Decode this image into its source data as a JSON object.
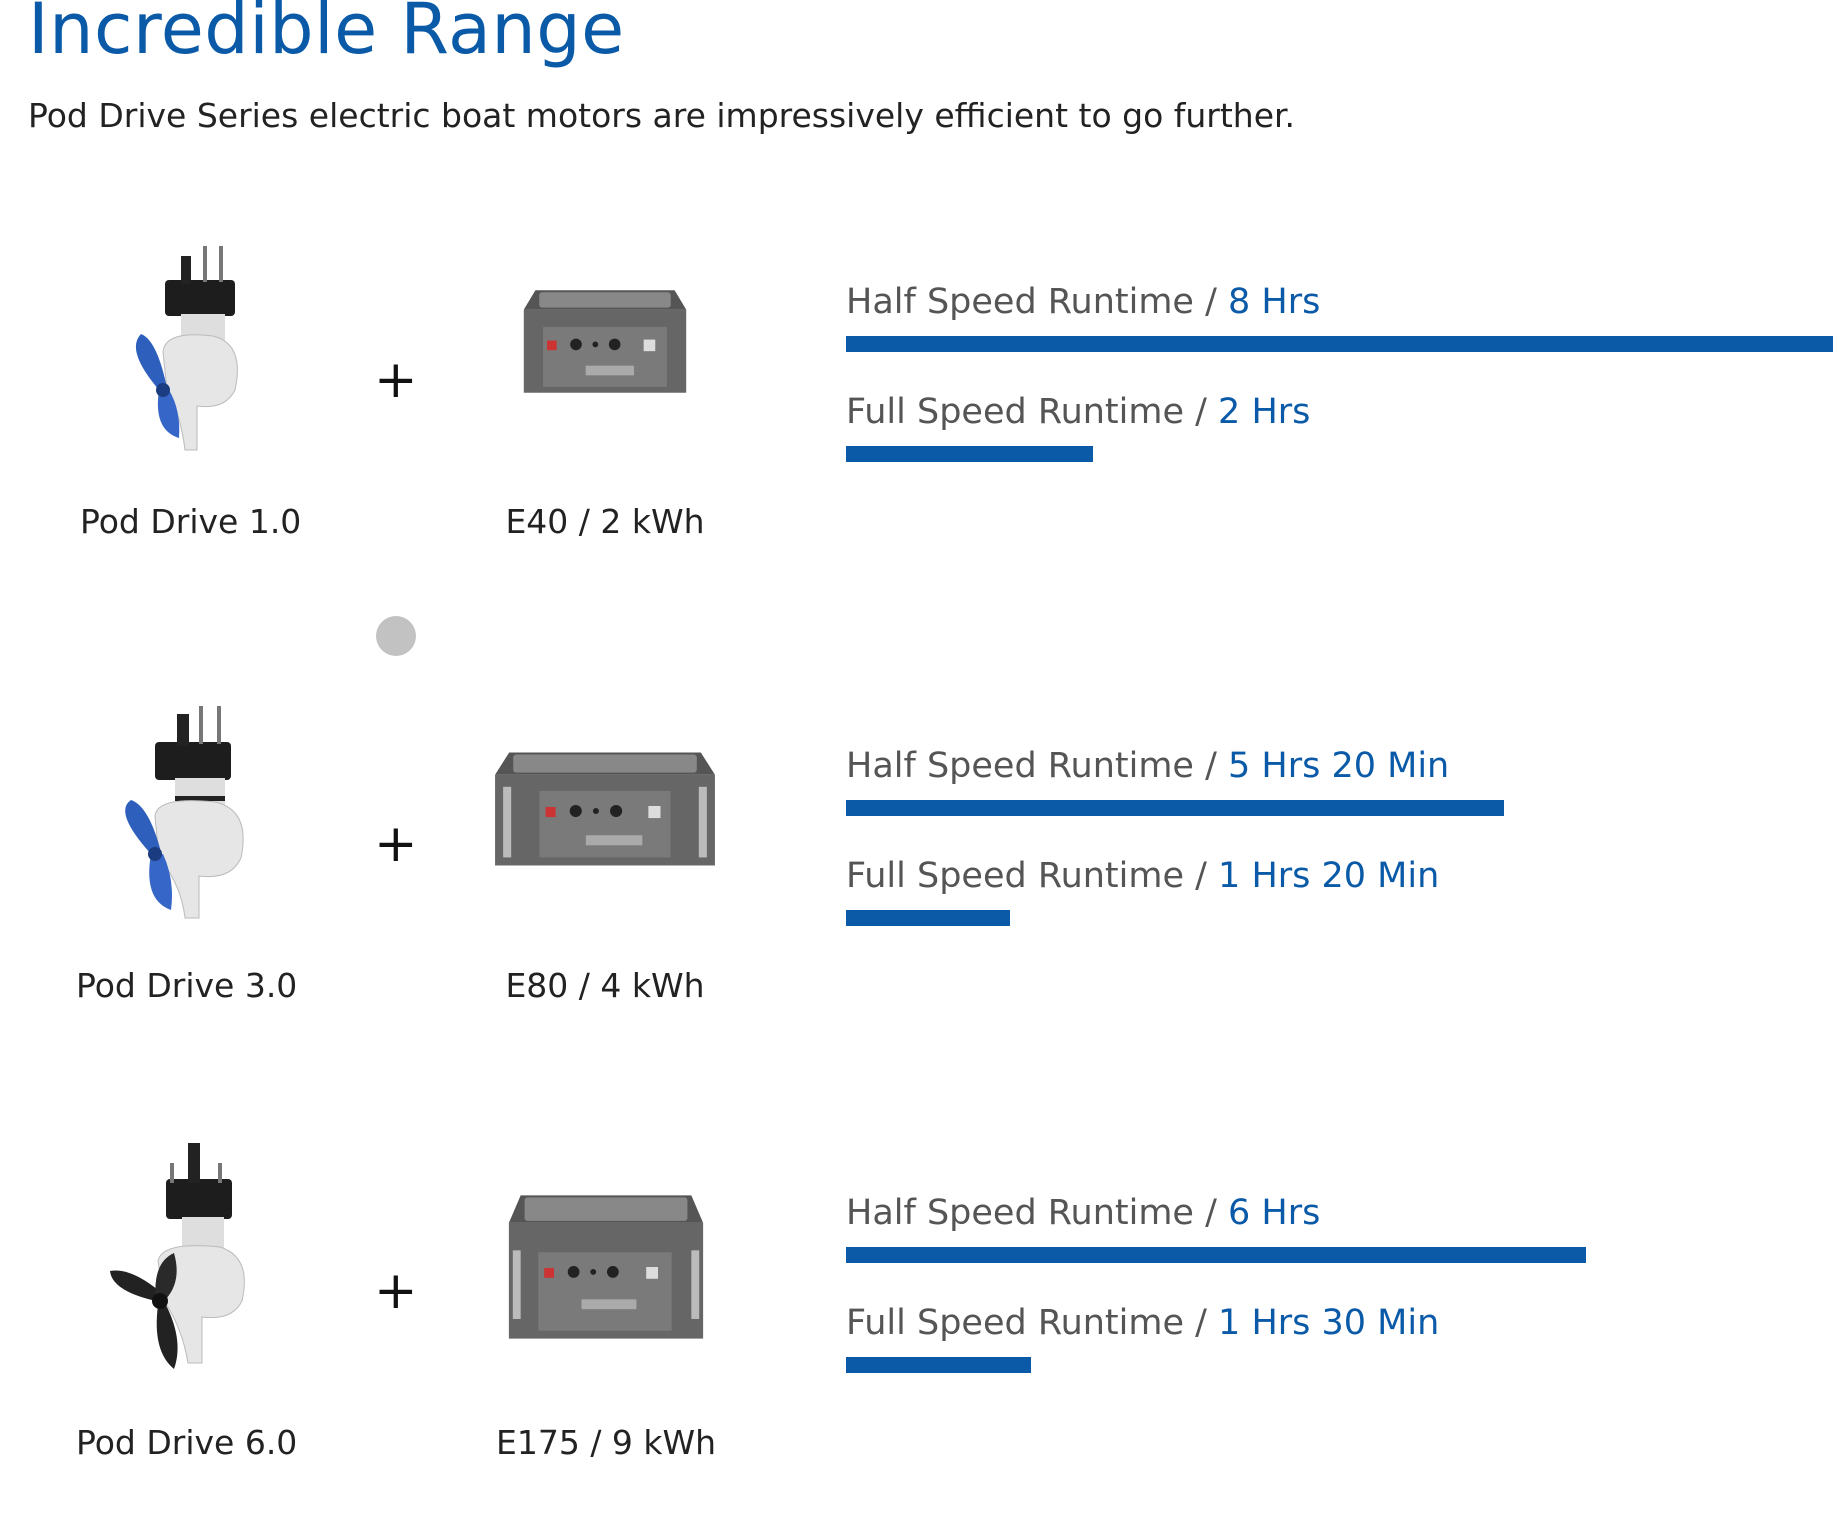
{
  "header": {
    "title": "Incredible Range",
    "subtitle": "Pod Drive Series electric boat motors are impressively efficient to go further."
  },
  "colors": {
    "accent": "#0a5aa8",
    "text": "#222222",
    "muted": "#555555"
  },
  "max_runtime_hours": 8,
  "rows": [
    {
      "motor": "Pod Drive 1.0",
      "motor_icon": "pod-drive-motor-icon",
      "plus": "+",
      "battery": "E40 / 2 kWh",
      "battery_icon": "battery-pack-icon",
      "half_label": "Half Speed Runtime / ",
      "half_value": "8 Hrs",
      "half_hours": 8,
      "full_label": "Full Speed Runtime / ",
      "full_value": "2 Hrs",
      "full_hours": 2
    },
    {
      "motor": "Pod Drive 3.0",
      "motor_icon": "pod-drive-motor-icon",
      "plus": "+",
      "battery": "E80 / 4 kWh",
      "battery_icon": "battery-pack-icon",
      "half_label": "Half Speed Runtime / ",
      "half_value": "5 Hrs 20 Min",
      "half_hours": 5.333,
      "full_label": "Full Speed Runtime / ",
      "full_value": "1 Hrs 20 Min",
      "full_hours": 1.333
    },
    {
      "motor": "Pod Drive 6.0",
      "motor_icon": "pod-drive-motor-icon",
      "plus": "+",
      "battery": "E175 / 9 kWh",
      "battery_icon": "battery-pack-icon",
      "half_label": "Half Speed Runtime / ",
      "half_value": "6 Hrs",
      "half_hours": 6,
      "full_label": "Full Speed Runtime / ",
      "full_value": "1 Hrs 30 Min",
      "full_hours": 1.5
    }
  ],
  "carousel_dot": "carousel-dot-icon"
}
